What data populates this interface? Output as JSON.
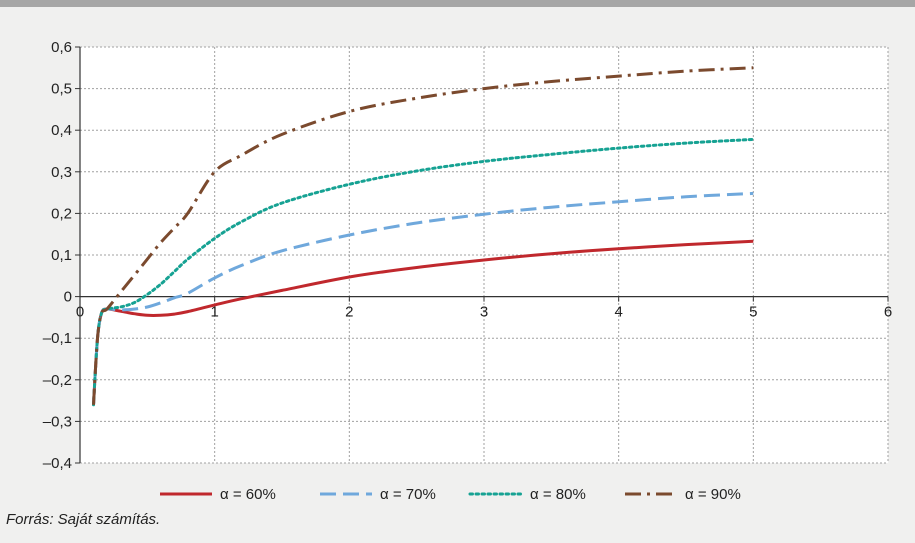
{
  "chart_data": {
    "type": "line",
    "title": "",
    "xlabel": "",
    "ylabel": "",
    "xlim": [
      0,
      6
    ],
    "ylim": [
      -0.4,
      0.6
    ],
    "x_ticks": [
      0,
      1,
      2,
      3,
      4,
      5,
      6
    ],
    "x_tick_labels": [
      "0",
      "1",
      "2",
      "3",
      "4",
      "5",
      "6"
    ],
    "y_ticks": [
      0.6,
      0.5,
      0.4,
      0.3,
      0.2,
      0.1,
      0,
      -0.1,
      -0.2,
      -0.3,
      -0.4
    ],
    "y_tick_labels": [
      "0,6",
      "0,5",
      "0,4",
      "0,3",
      "0,2",
      "0,1",
      "0",
      "–0,1",
      "–0,2",
      "–0,3",
      "–0,4"
    ],
    "grid": true,
    "legend_position": "bottom",
    "series": [
      {
        "name": "α = 60%",
        "color": "#c0282d",
        "style": "solid",
        "x": [
          0.1,
          0.13,
          0.16,
          0.2,
          0.3,
          0.4,
          0.5,
          0.6,
          0.7,
          0.8,
          1.0,
          1.2,
          1.5,
          2.0,
          2.5,
          3.0,
          3.5,
          4.0,
          4.5,
          5.0
        ],
        "y": [
          -0.26,
          -0.1,
          -0.04,
          -0.03,
          -0.035,
          -0.041,
          -0.045,
          -0.045,
          -0.042,
          -0.036,
          -0.02,
          -0.005,
          0.015,
          0.047,
          0.07,
          0.088,
          0.103,
          0.115,
          0.125,
          0.133
        ]
      },
      {
        "name": "α = 70%",
        "color": "#6fa8dc",
        "style": "dashed",
        "x": [
          0.1,
          0.13,
          0.16,
          0.2,
          0.3,
          0.4,
          0.5,
          0.6,
          0.7,
          0.8,
          1.0,
          1.2,
          1.5,
          2.0,
          2.5,
          3.0,
          3.5,
          4.0,
          4.5,
          5.0
        ],
        "y": [
          -0.26,
          -0.1,
          -0.04,
          -0.03,
          -0.032,
          -0.03,
          -0.025,
          -0.015,
          -0.003,
          0.008,
          0.045,
          0.075,
          0.11,
          0.148,
          0.177,
          0.198,
          0.215,
          0.228,
          0.24,
          0.248
        ]
      },
      {
        "name": "α = 80%",
        "color": "#16a293",
        "style": "dotted",
        "x": [
          0.1,
          0.13,
          0.16,
          0.2,
          0.3,
          0.4,
          0.5,
          0.6,
          0.7,
          0.8,
          1.0,
          1.2,
          1.5,
          2.0,
          2.5,
          3.0,
          3.5,
          4.0,
          4.5,
          5.0
        ],
        "y": [
          -0.26,
          -0.1,
          -0.04,
          -0.03,
          -0.025,
          -0.015,
          0.005,
          0.03,
          0.06,
          0.09,
          0.14,
          0.18,
          0.225,
          0.27,
          0.302,
          0.325,
          0.342,
          0.357,
          0.369,
          0.378
        ]
      },
      {
        "name": "α = 90%",
        "color": "#7b4a2e",
        "style": "dashdot",
        "x": [
          0.1,
          0.13,
          0.16,
          0.2,
          0.3,
          0.4,
          0.5,
          0.6,
          0.7,
          0.8,
          1.0,
          1.2,
          1.5,
          2.0,
          2.5,
          3.0,
          3.5,
          4.0,
          4.5,
          5.0
        ],
        "y": [
          -0.26,
          -0.1,
          -0.04,
          -0.03,
          0.01,
          0.05,
          0.09,
          0.13,
          0.165,
          0.2,
          0.3,
          0.34,
          0.39,
          0.445,
          0.477,
          0.5,
          0.517,
          0.53,
          0.542,
          0.55
        ]
      }
    ]
  },
  "source_note": "Forrás: Saját számítás."
}
